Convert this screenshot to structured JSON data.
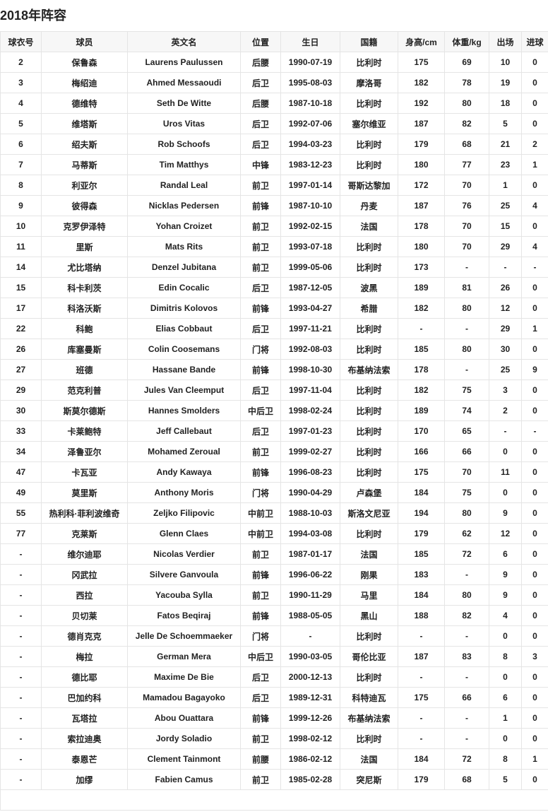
{
  "title": "2018年阵容",
  "columns": [
    "球衣号",
    "球员",
    "英文名",
    "位置",
    "生日",
    "国籍",
    "身高/cm",
    "体重/kg",
    "出场",
    "进球"
  ],
  "rows": [
    [
      "2",
      "保鲁森",
      "Laurens Paulussen",
      "后腰",
      "1990-07-19",
      "比利时",
      "175",
      "69",
      "10",
      "0"
    ],
    [
      "3",
      "梅绍迪",
      "Ahmed Messaoudi",
      "后卫",
      "1995-08-03",
      "摩洛哥",
      "182",
      "78",
      "19",
      "0"
    ],
    [
      "4",
      "德维特",
      "Seth De Witte",
      "后腰",
      "1987-10-18",
      "比利时",
      "192",
      "80",
      "18",
      "0"
    ],
    [
      "5",
      "维塔斯",
      "Uros Vitas",
      "后卫",
      "1992-07-06",
      "塞尔维亚",
      "187",
      "82",
      "5",
      "0"
    ],
    [
      "6",
      "绍夫斯",
      "Rob Schoofs",
      "后卫",
      "1994-03-23",
      "比利时",
      "179",
      "68",
      "21",
      "2"
    ],
    [
      "7",
      "马蒂斯",
      "Tim Matthys",
      "中锋",
      "1983-12-23",
      "比利时",
      "180",
      "77",
      "23",
      "1"
    ],
    [
      "8",
      "利亚尔",
      "Randal Leal",
      "前卫",
      "1997-01-14",
      "哥斯达黎加",
      "172",
      "70",
      "1",
      "0"
    ],
    [
      "9",
      "彼得森",
      "Nicklas Pedersen",
      "前锋",
      "1987-10-10",
      "丹麦",
      "187",
      "76",
      "25",
      "4"
    ],
    [
      "10",
      "克罗伊泽特",
      "Yohan Croizet",
      "前卫",
      "1992-02-15",
      "法国",
      "178",
      "70",
      "15",
      "0"
    ],
    [
      "11",
      "里斯",
      "Mats Rits",
      "前卫",
      "1993-07-18",
      "比利时",
      "180",
      "70",
      "29",
      "4"
    ],
    [
      "14",
      "尤比塔纳",
      "Denzel Jubitana",
      "前卫",
      "1999-05-06",
      "比利时",
      "173",
      "-",
      "-",
      "-"
    ],
    [
      "15",
      "科卡利茨",
      "Edin Cocalic",
      "后卫",
      "1987-12-05",
      "波黑",
      "189",
      "81",
      "26",
      "0"
    ],
    [
      "17",
      "科洛沃斯",
      "Dimitris Kolovos",
      "前锋",
      "1993-04-27",
      "希腊",
      "182",
      "80",
      "12",
      "0"
    ],
    [
      "22",
      "科鲍",
      "Elias Cobbaut",
      "后卫",
      "1997-11-21",
      "比利时",
      "-",
      "-",
      "29",
      "1"
    ],
    [
      "26",
      "库塞曼斯",
      "Colin Coosemans",
      "门将",
      "1992-08-03",
      "比利时",
      "185",
      "80",
      "30",
      "0"
    ],
    [
      "27",
      "班德",
      "Hassane Bande",
      "前锋",
      "1998-10-30",
      "布基纳法索",
      "178",
      "-",
      "25",
      "9"
    ],
    [
      "29",
      "范克利普",
      "Jules Van Cleemput",
      "后卫",
      "1997-11-04",
      "比利时",
      "182",
      "75",
      "3",
      "0"
    ],
    [
      "30",
      "斯莫尔德斯",
      "Hannes Smolders",
      "中后卫",
      "1998-02-24",
      "比利时",
      "189",
      "74",
      "2",
      "0"
    ],
    [
      "33",
      "卡莱鲍特",
      "Jeff Callebaut",
      "后卫",
      "1997-01-23",
      "比利时",
      "170",
      "65",
      "-",
      "-"
    ],
    [
      "34",
      "泽鲁亚尔",
      "Mohamed Zeroual",
      "前卫",
      "1999-02-27",
      "比利时",
      "166",
      "66",
      "0",
      "0"
    ],
    [
      "47",
      "卡瓦亚",
      "Andy Kawaya",
      "前锋",
      "1996-08-23",
      "比利时",
      "175",
      "70",
      "11",
      "0"
    ],
    [
      "49",
      "莫里斯",
      "Anthony Moris",
      "门将",
      "1990-04-29",
      "卢森堡",
      "184",
      "75",
      "0",
      "0"
    ],
    [
      "55",
      "热利科·菲利波维奇",
      "Zeljko Filipovic",
      "中前卫",
      "1988-10-03",
      "斯洛文尼亚",
      "194",
      "80",
      "9",
      "0"
    ],
    [
      "77",
      "克莱斯",
      "Glenn Claes",
      "中前卫",
      "1994-03-08",
      "比利时",
      "179",
      "62",
      "12",
      "0"
    ],
    [
      "-",
      "维尔迪耶",
      "Nicolas Verdier",
      "前卫",
      "1987-01-17",
      "法国",
      "185",
      "72",
      "6",
      "0"
    ],
    [
      "-",
      "冈武拉",
      "Silvere Ganvoula",
      "前锋",
      "1996-06-22",
      "刚果",
      "183",
      "-",
      "9",
      "0"
    ],
    [
      "-",
      "西拉",
      "Yacouba Sylla",
      "前卫",
      "1990-11-29",
      "马里",
      "184",
      "80",
      "9",
      "0"
    ],
    [
      "-",
      "贝切莱",
      "Fatos Beqiraj",
      "前锋",
      "1988-05-05",
      "黑山",
      "188",
      "82",
      "4",
      "0"
    ],
    [
      "-",
      "德肖克克",
      "Jelle De Schoemmaeker",
      "门将",
      "-",
      "比利时",
      "-",
      "-",
      "0",
      "0"
    ],
    [
      "-",
      "梅拉",
      "German Mera",
      "中后卫",
      "1990-03-05",
      "哥伦比亚",
      "187",
      "83",
      "8",
      "3"
    ],
    [
      "-",
      "德比耶",
      "Maxime De Bie",
      "后卫",
      "2000-12-13",
      "比利时",
      "-",
      "-",
      "0",
      "0"
    ],
    [
      "-",
      "巴加约科",
      "Mamadou Bagayoko",
      "后卫",
      "1989-12-31",
      "科特迪瓦",
      "175",
      "66",
      "6",
      "0"
    ],
    [
      "-",
      "瓦塔拉",
      "Abou Ouattara",
      "前锋",
      "1999-12-26",
      "布基纳法索",
      "-",
      "-",
      "1",
      "0"
    ],
    [
      "-",
      "索拉迪奥",
      "Jordy Soladio",
      "前卫",
      "1998-02-12",
      "比利时",
      "-",
      "-",
      "0",
      "0"
    ],
    [
      "-",
      "泰恩芒",
      "Clement Tainmont",
      "前腰",
      "1986-02-12",
      "法国",
      "184",
      "72",
      "8",
      "1"
    ],
    [
      "-",
      "加缪",
      "Fabien Camus",
      "前卫",
      "1985-02-28",
      "突尼斯",
      "179",
      "68",
      "5",
      "0"
    ]
  ]
}
